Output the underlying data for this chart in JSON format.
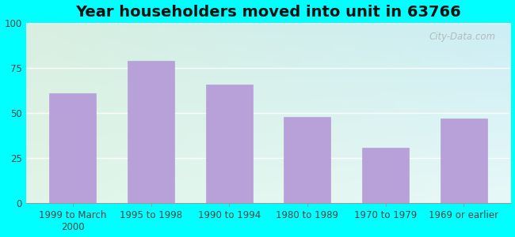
{
  "title": "Year householders moved into unit in 63766",
  "categories": [
    "1999 to March\n2000",
    "1995 to 1998",
    "1990 to 1994",
    "1980 to 1989",
    "1970 to 1979",
    "1969 or earlier"
  ],
  "values": [
    61,
    79,
    66,
    48,
    31,
    47
  ],
  "bar_color": "#b8a0d8",
  "bar_edge_color": "#b8a0d8",
  "ylim": [
    0,
    100
  ],
  "yticks": [
    0,
    25,
    50,
    75,
    100
  ],
  "background_outer": "#00ffff",
  "bg_top_left": "#d8efe0",
  "bg_top_right": "#cceef5",
  "bg_bottom_left": "#e8f8ee",
  "bg_bottom_right": "#e0f5fa",
  "grid_color": "#e8e8e8",
  "title_fontsize": 14,
  "tick_fontsize": 8.5,
  "watermark": "City-Data.com"
}
